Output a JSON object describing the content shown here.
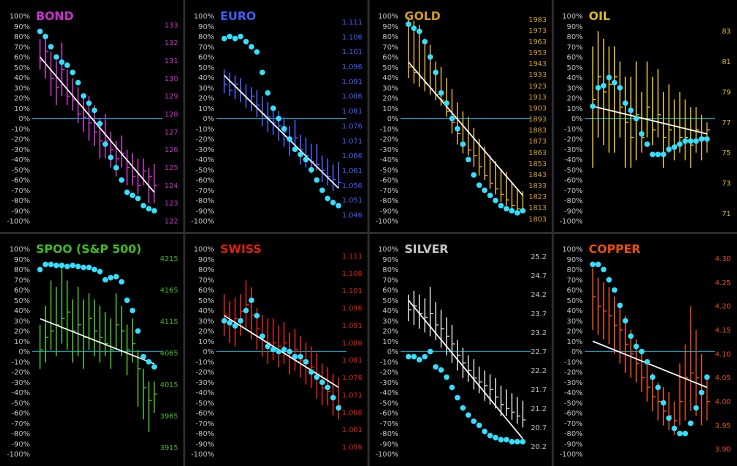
{
  "theme": {
    "background": "#000000",
    "pct_label_color": "#d0d0d0",
    "zero_line_color": "#00a0c0",
    "trend_line_color": "#ffffff",
    "dot_color": "#33e0ff",
    "divider_color": "#303030"
  },
  "pct_ticks": [
    "100%",
    "90%",
    "80%",
    "70%",
    "60%",
    "50%",
    "40%",
    "30%",
    "20%",
    "10%",
    "0%",
    "-10%",
    "-20%",
    "-30%",
    "-40%",
    "-50%",
    "-60%",
    "-70%",
    "-80%",
    "-90%",
    "-100%"
  ],
  "chart_data": [
    {
      "type": "bar",
      "title": "BOND",
      "color": "#d030d0",
      "price_ticks": [
        "133",
        "132",
        "131",
        "130",
        "129",
        "128",
        "127",
        "126",
        "125",
        "124",
        "123",
        "122"
      ],
      "price_range": [
        122,
        133.5
      ],
      "bars": [
        [
          130.5,
          132.2,
          131
        ],
        [
          130,
          132.5,
          131.5
        ],
        [
          129,
          131.5,
          130
        ],
        [
          128.5,
          131,
          129.5
        ],
        [
          129,
          132,
          130.5
        ],
        [
          128.5,
          130.5,
          129
        ],
        [
          128.2,
          130,
          128.8
        ],
        [
          127.5,
          129.5,
          128
        ],
        [
          127,
          129,
          127.8
        ],
        [
          126.5,
          129,
          127.5
        ],
        [
          126.2,
          128.5,
          127
        ],
        [
          125.5,
          127.8,
          126.5
        ],
        [
          125.5,
          128,
          126.5
        ],
        [
          125,
          127,
          126
        ],
        [
          124.5,
          126.5,
          125.5
        ],
        [
          125,
          126.8,
          125.8
        ],
        [
          124,
          126,
          125
        ],
        [
          124,
          125.8,
          124.5
        ],
        [
          123.5,
          125.5,
          124
        ],
        [
          124,
          125.5,
          124.8
        ],
        [
          123,
          125,
          124.5
        ],
        [
          123,
          125.2,
          124
        ]
      ],
      "oscillator": [
        85,
        80,
        70,
        60,
        55,
        52,
        45,
        35,
        22,
        15,
        8,
        -5,
        -25,
        -38,
        -48,
        -60,
        -72,
        -75,
        -78,
        -85,
        -88,
        -90
      ],
      "trend": [
        60,
        -72
      ]
    },
    {
      "type": "bar",
      "title": "EURO",
      "color": "#4060ff",
      "price_ticks": [
        "1.111",
        "1.106",
        "1.101",
        "1.096",
        "1.091",
        "1.086",
        "1.081",
        "1.076",
        "1.071",
        "1.066",
        "1.061",
        "1.056",
        "1.051",
        "1.046"
      ],
      "price_range": [
        1.044,
        1.113
      ],
      "bars": [
        [
          1.087,
          1.095,
          1.09
        ],
        [
          1.086,
          1.094,
          1.088
        ],
        [
          1.085,
          1.093,
          1.09
        ],
        [
          1.084,
          1.092,
          1.087
        ],
        [
          1.082,
          1.09,
          1.085
        ],
        [
          1.081,
          1.089,
          1.086
        ],
        [
          1.079,
          1.088,
          1.083
        ],
        [
          1.076,
          1.086,
          1.08
        ],
        [
          1.074,
          1.084,
          1.079
        ],
        [
          1.073,
          1.083,
          1.077
        ],
        [
          1.071,
          1.081,
          1.076
        ],
        [
          1.069,
          1.079,
          1.074
        ],
        [
          1.066,
          1.076,
          1.071
        ],
        [
          1.068,
          1.078,
          1.072
        ],
        [
          1.063,
          1.073,
          1.068
        ],
        [
          1.062,
          1.072,
          1.066
        ],
        [
          1.06,
          1.07,
          1.064
        ],
        [
          1.061,
          1.07,
          1.063
        ],
        [
          1.057,
          1.066,
          1.061
        ],
        [
          1.056,
          1.065,
          1.059
        ],
        [
          1.054,
          1.063,
          1.058
        ],
        [
          1.055,
          1.064,
          1.057
        ]
      ],
      "oscillator": [
        78,
        80,
        78,
        80,
        75,
        70,
        65,
        45,
        25,
        10,
        0,
        -10,
        -20,
        -30,
        -35,
        -40,
        -50,
        -60,
        -70,
        -78,
        -82,
        -85
      ],
      "trend": [
        42,
        -68
      ]
    },
    {
      "type": "bar",
      "title": "GOLD",
      "color": "#d4a020",
      "price_ticks": [
        "1983",
        "1973",
        "1963",
        "1953",
        "1943",
        "1933",
        "1923",
        "1913",
        "1903",
        "1893",
        "1883",
        "1873",
        "1863",
        "1853",
        "1843",
        "1833",
        "1823",
        "1813",
        "1803"
      ],
      "price_range": [
        1801,
        1986
      ],
      "bars": [
        [
          1930,
          1985,
          1940
        ],
        [
          1925,
          1982,
          1935
        ],
        [
          1922,
          1978,
          1930
        ],
        [
          1918,
          1965,
          1925
        ],
        [
          1915,
          1960,
          1920
        ],
        [
          1910,
          1945,
          1915
        ],
        [
          1905,
          1940,
          1910
        ],
        [
          1895,
          1930,
          1900
        ],
        [
          1880,
          1920,
          1890
        ],
        [
          1870,
          1908,
          1880
        ],
        [
          1862,
          1900,
          1870
        ],
        [
          1860,
          1895,
          1865
        ],
        [
          1850,
          1885,
          1860
        ],
        [
          1842,
          1875,
          1850
        ],
        [
          1838,
          1868,
          1842
        ],
        [
          1830,
          1860,
          1835
        ],
        [
          1825,
          1855,
          1830
        ],
        [
          1818,
          1848,
          1825
        ],
        [
          1815,
          1845,
          1820
        ],
        [
          1810,
          1835,
          1815
        ],
        [
          1808,
          1830,
          1812
        ],
        [
          1808,
          1828,
          1810
        ]
      ],
      "oscillator": [
        92,
        88,
        85,
        75,
        60,
        45,
        25,
        15,
        0,
        -10,
        -25,
        -40,
        -55,
        -65,
        -70,
        -75,
        -80,
        -85,
        -88,
        -90,
        -92,
        -90
      ],
      "trend": [
        55,
        -75
      ]
    },
    {
      "type": "bar",
      "title": "OIL",
      "color": "#e0c020",
      "price_ticks": [
        "83",
        "81",
        "79",
        "77",
        "75",
        "73",
        "71"
      ],
      "price_range": [
        70.5,
        84
      ],
      "bars": [
        [
          74,
          82,
          78.5
        ],
        [
          76,
          83,
          80
        ],
        [
          75.5,
          82.5,
          79
        ],
        [
          75,
          82,
          79.5
        ],
        [
          75,
          82,
          80
        ],
        [
          76,
          81,
          78
        ],
        [
          74,
          80,
          77
        ],
        [
          74,
          80,
          76
        ],
        [
          74.5,
          81,
          77.5
        ],
        [
          75,
          79,
          76
        ],
        [
          76,
          81,
          78
        ],
        [
          75.5,
          80,
          76.5
        ],
        [
          76,
          80.5,
          77.5
        ],
        [
          74,
          79,
          76
        ],
        [
          75,
          79.5,
          76.5
        ],
        [
          74.5,
          78.5,
          75.5
        ],
        [
          75,
          79,
          76
        ],
        [
          74.5,
          78.5,
          76
        ],
        [
          74,
          78,
          75.5
        ],
        [
          75,
          78,
          76.5
        ],
        [
          74.5,
          77.5,
          76
        ],
        [
          75,
          77,
          76.5
        ]
      ],
      "oscillator": [
        12,
        30,
        32,
        40,
        35,
        30,
        15,
        8,
        0,
        -15,
        -25,
        -35,
        -35,
        -35,
        -30,
        -28,
        -25,
        -22,
        -22,
        -22,
        -20,
        -20
      ],
      "trend": [
        12,
        -15
      ]
    },
    {
      "type": "bar",
      "title": "SPOO (S&P 500)",
      "color": "#40c020",
      "price_ticks": [
        "4215",
        "4165",
        "4115",
        "4065",
        "4015",
        "3965",
        "3915"
      ],
      "price_range": [
        3905,
        4230
      ],
      "bars": [
        [
          4040,
          4110,
          4070
        ],
        [
          4050,
          4140,
          4090
        ],
        [
          4070,
          4180,
          4100
        ],
        [
          4060,
          4170,
          4110
        ],
        [
          4080,
          4200,
          4120
        ],
        [
          4070,
          4180,
          4130
        ],
        [
          4050,
          4150,
          4100
        ],
        [
          4060,
          4170,
          4110
        ],
        [
          4040,
          4150,
          4090
        ],
        [
          4070,
          4160,
          4120
        ],
        [
          4060,
          4150,
          4100
        ],
        [
          4050,
          4140,
          4090
        ],
        [
          4060,
          4130,
          4080
        ],
        [
          4040,
          4120,
          4070
        ],
        [
          4070,
          4160,
          4110
        ],
        [
          4060,
          4140,
          4100
        ],
        [
          4030,
          4110,
          4070
        ],
        [
          4050,
          4120,
          4080
        ],
        [
          3980,
          4070,
          4040
        ],
        [
          3960,
          4040,
          4010
        ],
        [
          3940,
          4020,
          3990
        ],
        [
          3970,
          4020,
          4000
        ]
      ],
      "oscillator": [
        80,
        85,
        85,
        84,
        84,
        83,
        84,
        83,
        82,
        82,
        80,
        78,
        70,
        72,
        73,
        68,
        50,
        40,
        20,
        -5,
        -10,
        -15
      ],
      "trend": [
        32,
        -12
      ]
    },
    {
      "type": "bar",
      "title": "SWISS",
      "color": "#e02010",
      "price_ticks": [
        "1.111",
        "1.106",
        "1.101",
        "1.096",
        "1.091",
        "1.086",
        "1.081",
        "1.076",
        "1.071",
        "1.066",
        "1.061",
        "1.056"
      ],
      "price_range": [
        1.054,
        1.113
      ],
      "bars": [
        [
          1.088,
          1.1,
          1.094
        ],
        [
          1.086,
          1.098,
          1.092
        ],
        [
          1.085,
          1.099,
          1.093
        ],
        [
          1.088,
          1.1,
          1.095
        ],
        [
          1.09,
          1.104,
          1.097
        ],
        [
          1.087,
          1.102,
          1.094
        ],
        [
          1.084,
          1.096,
          1.09
        ],
        [
          1.082,
          1.094,
          1.088
        ],
        [
          1.08,
          1.093,
          1.086
        ],
        [
          1.081,
          1.093,
          1.086
        ],
        [
          1.079,
          1.091,
          1.085
        ],
        [
          1.08,
          1.092,
          1.086
        ],
        [
          1.077,
          1.089,
          1.083
        ],
        [
          1.078,
          1.09,
          1.084
        ],
        [
          1.076,
          1.088,
          1.081
        ],
        [
          1.074,
          1.086,
          1.08
        ],
        [
          1.073,
          1.085,
          1.079
        ],
        [
          1.07,
          1.083,
          1.077
        ],
        [
          1.068,
          1.08,
          1.073
        ],
        [
          1.068,
          1.079,
          1.072
        ],
        [
          1.065,
          1.077,
          1.07
        ],
        [
          1.064,
          1.076,
          1.068
        ]
      ],
      "oscillator": [
        30,
        28,
        25,
        30,
        40,
        50,
        35,
        15,
        5,
        2,
        0,
        2,
        0,
        -5,
        -5,
        -10,
        -20,
        -25,
        -30,
        -35,
        -45,
        -55
      ],
      "trend": [
        35,
        -35
      ]
    },
    {
      "type": "bar",
      "title": "SILVER",
      "color": "#c8c8c8",
      "price_ticks": [
        "25.2",
        "24.7",
        "24.2",
        "23.7",
        "23.2",
        "22.7",
        "22.2",
        "21.7",
        "21.2",
        "20.7",
        "20.2"
      ],
      "price_range": [
        20.0,
        25.4
      ],
      "bars": [
        [
          23.5,
          24.2,
          23.8
        ],
        [
          23.4,
          24.3,
          23.9
        ],
        [
          23.3,
          24.2,
          23.7
        ],
        [
          23.2,
          24.1,
          23.6
        ],
        [
          23.1,
          24.4,
          23.7
        ],
        [
          23,
          24,
          23.4
        ],
        [
          22.8,
          23.8,
          23.3
        ],
        [
          22.6,
          23.6,
          23.1
        ],
        [
          22.4,
          23.4,
          22.9
        ],
        [
          22.2,
          23,
          22.6
        ],
        [
          22,
          22.8,
          22.4
        ],
        [
          21.9,
          22.6,
          22.2
        ],
        [
          21.7,
          22.5,
          22
        ],
        [
          21.6,
          22.3,
          21.9
        ],
        [
          21.4,
          22.2,
          21.8
        ],
        [
          21.3,
          22.1,
          21.7
        ],
        [
          21.2,
          22,
          21.5
        ],
        [
          21,
          21.8,
          21.3
        ],
        [
          21,
          21.7,
          21.2
        ],
        [
          20.9,
          21.6,
          21.1
        ],
        [
          20.8,
          21.5,
          21
        ],
        [
          20.7,
          21.4,
          20.9
        ]
      ],
      "oscillator": [
        -5,
        -5,
        -8,
        -5,
        0,
        -15,
        -18,
        -25,
        -35,
        -45,
        -55,
        -62,
        -68,
        -72,
        -78,
        -82,
        -84,
        -86,
        -86,
        -88,
        -88,
        -88
      ],
      "trend": [
        50,
        -85
      ]
    },
    {
      "type": "bar",
      "title": "COPPER",
      "color": "#f05010",
      "price_ticks": [
        "4.30",
        "4.25",
        "4.20",
        "4.15",
        "4.10",
        "4.05",
        "4.00",
        "3.95",
        "3.90"
      ],
      "price_range": [
        3.89,
        4.32
      ],
      "bars": [
        [
          4.15,
          4.28,
          4.22
        ],
        [
          4.14,
          4.26,
          4.2
        ],
        [
          4.13,
          4.25,
          4.19
        ],
        [
          4.12,
          4.24,
          4.18
        ],
        [
          4.1,
          4.22,
          4.16
        ],
        [
          4.08,
          4.2,
          4.15
        ],
        [
          4.06,
          4.18,
          4.12
        ],
        [
          4.05,
          4.15,
          4.1
        ],
        [
          4.04,
          4.13,
          4.08
        ],
        [
          4.02,
          4.1,
          4.05
        ],
        [
          4,
          4.08,
          4.03
        ],
        [
          3.98,
          4.06,
          4.01
        ],
        [
          3.96,
          4.04,
          4
        ],
        [
          3.95,
          4.03,
          3.98
        ],
        [
          3.94,
          4.02,
          3.97
        ],
        [
          3.93,
          4,
          3.96
        ],
        [
          3.95,
          4.08,
          4
        ],
        [
          3.96,
          4.12,
          4.05
        ],
        [
          3.98,
          4.2,
          4.06
        ],
        [
          3.97,
          4.15,
          4.05
        ],
        [
          3.95,
          4.1,
          4.02
        ],
        [
          3.96,
          4.05,
          4
        ]
      ],
      "oscillator": [
        85,
        85,
        80,
        70,
        60,
        45,
        30,
        15,
        5,
        0,
        -10,
        -25,
        -35,
        -50,
        -65,
        -75,
        -80,
        -80,
        -70,
        -55,
        -40,
        -25
      ],
      "trend": [
        10,
        -35
      ]
    }
  ]
}
